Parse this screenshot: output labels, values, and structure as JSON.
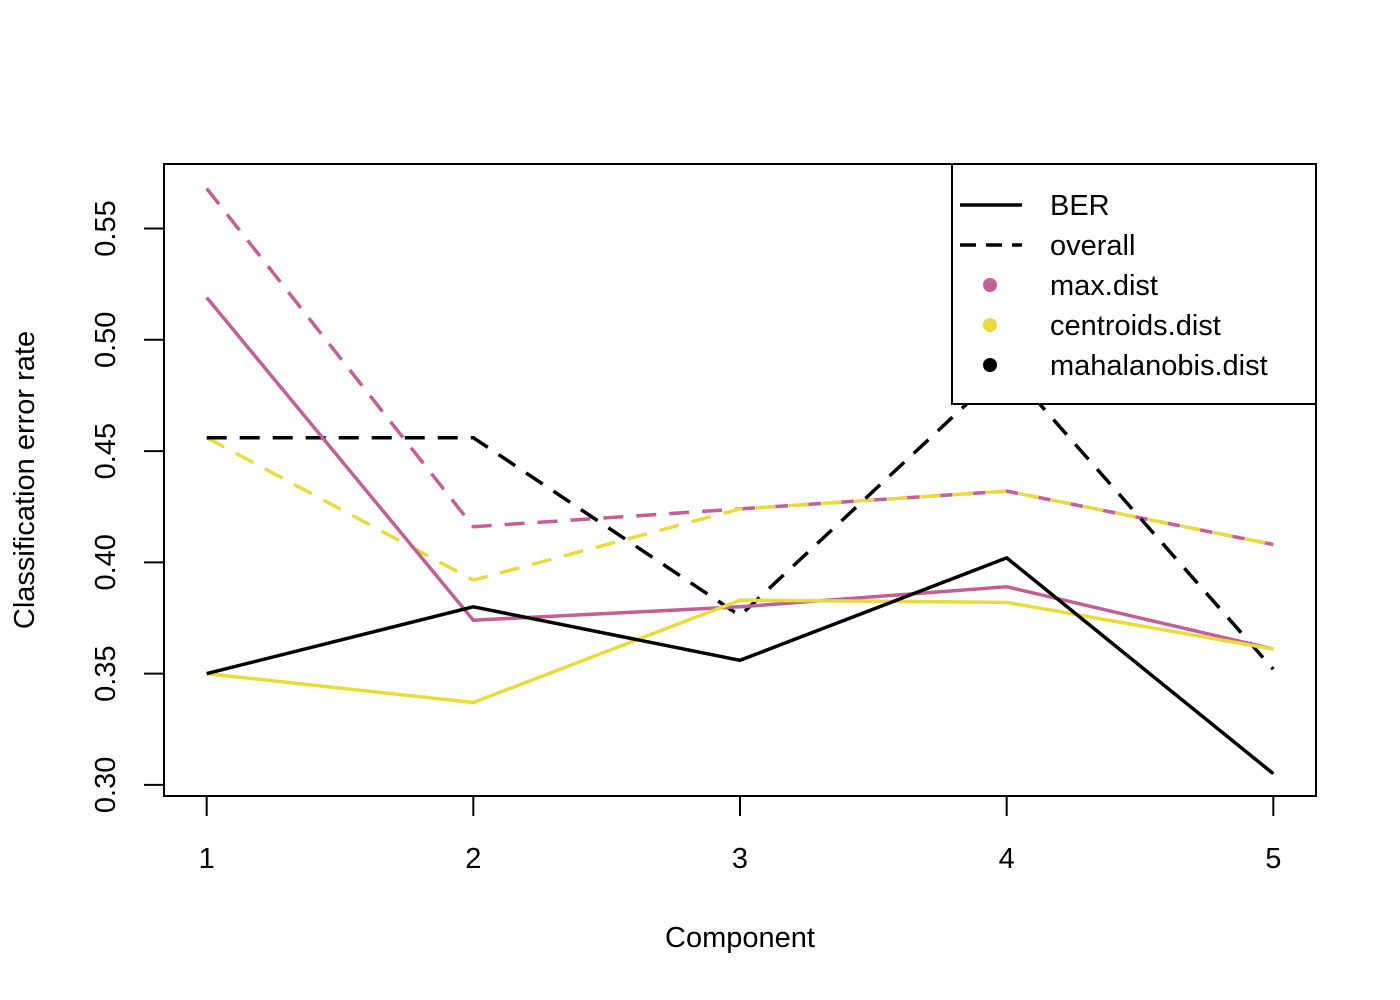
{
  "chart_data": {
    "type": "line",
    "title": "",
    "xlabel": "Component",
    "ylabel": "Classification error rate",
    "x": [
      1,
      2,
      3,
      4,
      5
    ],
    "xticks": [
      "1",
      "2",
      "3",
      "4",
      "5"
    ],
    "yticks": [
      "0.30",
      "0.35",
      "0.40",
      "0.45",
      "0.50",
      "0.55"
    ],
    "xlim": [
      0.84,
      5.16
    ],
    "ylim": [
      0.295,
      0.579
    ],
    "grid": false,
    "legend_position": "top-right",
    "legend": [
      {
        "label": "BER",
        "kind": "line-solid",
        "color": "#000000"
      },
      {
        "label": "overall",
        "kind": "line-dashed",
        "color": "#000000"
      },
      {
        "label": "max.dist",
        "kind": "dot",
        "color": "#C45E99"
      },
      {
        "label": "centroids.dist",
        "kind": "dot",
        "color": "#E8DC3A"
      },
      {
        "label": "mahalanobis.dist",
        "kind": "dot",
        "color": "#000000"
      }
    ],
    "series": [
      {
        "measure": "overall",
        "distance": "max.dist",
        "color": "#C45E99",
        "dash": true,
        "values": [
          0.568,
          0.416,
          0.424,
          0.432,
          0.408
        ]
      },
      {
        "measure": "overall",
        "distance": "centroids.dist",
        "color": "#E8DC3A",
        "dash": true,
        "values": [
          0.456,
          0.392,
          0.424,
          0.432,
          0.408
        ]
      },
      {
        "measure": "overall",
        "distance": "mahalanobis.dist",
        "color": "#000000",
        "dash": true,
        "values": [
          0.456,
          0.456,
          0.376,
          0.488,
          0.352
        ]
      },
      {
        "measure": "BER",
        "distance": "max.dist",
        "color": "#C45E99",
        "dash": false,
        "values": [
          0.519,
          0.374,
          0.38,
          0.389,
          0.361
        ]
      },
      {
        "measure": "BER",
        "distance": "centroids.dist",
        "color": "#E8DC3A",
        "dash": false,
        "values": [
          0.35,
          0.337,
          0.383,
          0.382,
          0.361
        ]
      },
      {
        "measure": "BER",
        "distance": "mahalanobis.dist",
        "color": "#000000",
        "dash": false,
        "values": [
          0.35,
          0.38,
          0.356,
          0.402,
          0.305
        ]
      }
    ]
  }
}
